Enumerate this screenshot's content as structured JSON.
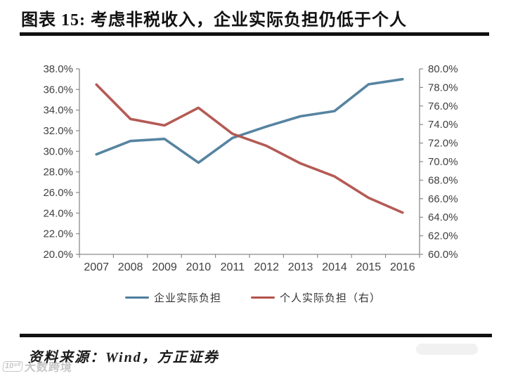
{
  "title": "图表 15: 考虑非税收入，企业实际负担仍低于个人",
  "source": "资料来源：Wind，方正证券",
  "watermark": {
    "icon_text": "10⁵⁰",
    "label": "大数跨境"
  },
  "colors": {
    "series_blue": "#4d7d9c",
    "series_red": "#b0524c",
    "axis_line": "#8a8a8a",
    "tick_label": "#404040",
    "divider": "#111111"
  },
  "chart_data": {
    "type": "line",
    "categories": [
      "2007",
      "2008",
      "2009",
      "2010",
      "2011",
      "2012",
      "2013",
      "2014",
      "2015",
      "2016"
    ],
    "series": [
      {
        "name": "企业实际负担",
        "axis": "left",
        "color": "#4d7d9c",
        "values": [
          29.7,
          31.0,
          31.2,
          28.9,
          31.3,
          32.4,
          33.4,
          33.9,
          36.5,
          37.0
        ]
      },
      {
        "name": "个人实际负担（右）",
        "axis": "right",
        "color": "#b0524c",
        "values": [
          78.3,
          74.6,
          73.9,
          75.8,
          73.0,
          71.7,
          69.8,
          68.4,
          66.1,
          64.5
        ]
      }
    ],
    "left_axis": {
      "min": 20,
      "max": 38,
      "step": 2,
      "tick_format": "0.0%"
    },
    "right_axis": {
      "min": 60,
      "max": 80,
      "step": 2,
      "tick_format": "0.0%"
    },
    "grid": false,
    "legend_position": "bottom"
  }
}
